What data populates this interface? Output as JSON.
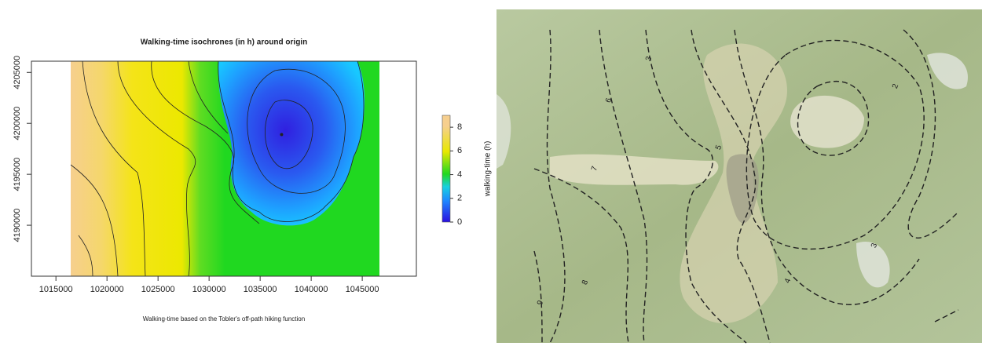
{
  "chart_data": {
    "type": "raster",
    "title": "Walking-time isochrones (in h) around origin",
    "caption": "Walking-time based on the Tobler's off-path hiking function",
    "xlim": [
      1012600,
      1050300
    ],
    "ylim": [
      4185000,
      4206100
    ],
    "xticks": [
      1015000,
      1020000,
      1025000,
      1030000,
      1035000,
      1040000,
      1045000
    ],
    "yticks": [
      4190000,
      4195000,
      4200000,
      4205000
    ],
    "points": {
      "x": [
        1037100
      ],
      "y": [
        4198900
      ],
      "color": "#222222"
    },
    "colorbar": {
      "label": "walking-time (h)",
      "lim": [
        0,
        9
      ],
      "ticks": [
        0,
        2,
        4,
        6,
        8
      ]
    }
  },
  "map": {
    "contour_labels": [
      3,
      6,
      5,
      7,
      2,
      3,
      4,
      8,
      9
    ]
  }
}
